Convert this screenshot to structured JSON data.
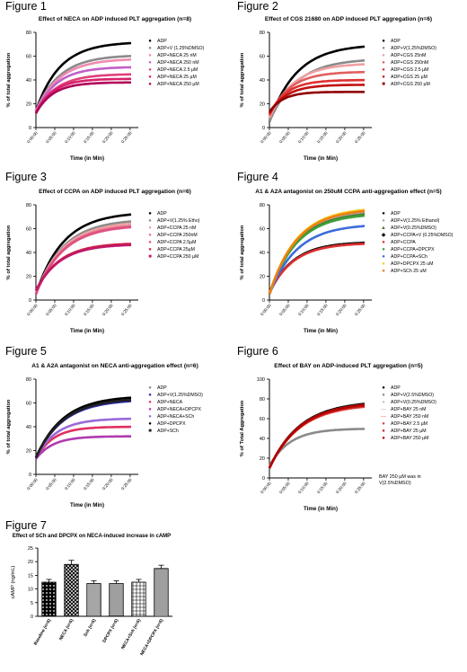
{
  "figure_labels": [
    "Figure 1",
    "Figure 2",
    "Figure 3",
    "Figure 4",
    "Figure 5",
    "Figure 6",
    "Figure 7"
  ],
  "chart_data": [
    {
      "type": "line",
      "title": "Effect of NECA on ADP induced PLT aggregation (n=8)",
      "xlabel": "Time (in Min)",
      "ylabel": "% of total aggregation",
      "ylim": [
        0,
        80
      ],
      "yticks": [
        0,
        20,
        40,
        60,
        80
      ],
      "xlim": [
        0,
        30
      ],
      "xticks": [
        "0:00:00",
        "0:05:00",
        "0:10:00",
        "0:15:00",
        "0:20:00",
        "0:25:00"
      ],
      "legend_position": "right",
      "series": [
        {
          "name": "ADP",
          "color": "#000000",
          "marker": "●",
          "y0": 14,
          "plateau": 72,
          "tau": 7
        },
        {
          "name": "ADP+V (1.25%DMSO)",
          "color": "#8a8a8a",
          "marker": "●",
          "y0": 14,
          "plateau": 61,
          "tau": 7
        },
        {
          "name": "ADP+NECA 25 nM",
          "color": "#f08ab0",
          "marker": "●",
          "y0": 14,
          "plateau": 58,
          "tau": 7
        },
        {
          "name": "ADP+NECA 250 nM",
          "color": "#c060c8",
          "marker": "●",
          "y0": 13,
          "plateau": 51,
          "tau": 6
        },
        {
          "name": "ADP+NECA 2.5 µM",
          "color": "#e0407a",
          "marker": "●",
          "y0": 13,
          "plateau": 45,
          "tau": 6
        },
        {
          "name": "ADP+NECA 25 µM",
          "color": "#d8206a",
          "marker": "●",
          "y0": 12,
          "plateau": 41,
          "tau": 5
        },
        {
          "name": "ADP+NECA 250 µM",
          "color": "#b0005a",
          "marker": "●",
          "y0": 12,
          "plateau": 38,
          "tau": 5
        }
      ]
    },
    {
      "type": "line",
      "title": "Effect of CGS 21680 on ADP induced PLT aggregation (n=6)",
      "xlabel": "Time (in Min)",
      "ylabel": "% of total aggregation",
      "ylim": [
        0,
        80
      ],
      "yticks": [
        0,
        20,
        40,
        60,
        80
      ],
      "xlim": [
        0,
        30
      ],
      "xticks": [
        "0:00:00",
        "0:05:00",
        "0:10:00",
        "0:15:00",
        "0:20:00",
        "0:25:00"
      ],
      "legend_position": "right",
      "series": [
        {
          "name": "ADP",
          "color": "#000000",
          "marker": "●",
          "y0": 5,
          "plateau": 70,
          "tau": 8
        },
        {
          "name": "ADP+V(1.25%DMSO)",
          "color": "#8a8a8a",
          "marker": "●",
          "y0": 5,
          "plateau": 58,
          "tau": 8
        },
        {
          "name": "ADP+CGS 25nM",
          "color": "#f0a0a0",
          "marker": "●",
          "y0": 8,
          "plateau": 54,
          "tau": 7
        },
        {
          "name": "ADP+CGS 250nM",
          "color": "#e06060",
          "marker": "●",
          "y0": 10,
          "plateau": 47,
          "tau": 6
        },
        {
          "name": "ADP+CGS 2.5 µM",
          "color": "#e03030",
          "marker": "●",
          "y0": 11,
          "plateau": 40,
          "tau": 5
        },
        {
          "name": "ADP+CGS 25 µM",
          "color": "#c01010",
          "marker": "●",
          "y0": 12,
          "plateau": 36,
          "tau": 5
        },
        {
          "name": "ADP+CGS 250 µM",
          "color": "#900000",
          "marker": "■",
          "y0": 13,
          "plateau": 30,
          "tau": 4
        }
      ]
    },
    {
      "type": "line",
      "title": "Effect of CCPA on ADP induced PLT aggregation (n=6)",
      "xlabel": "Time (in Min)",
      "ylabel": "% of total aggregation",
      "ylim": [
        0,
        80
      ],
      "yticks": [
        0,
        20,
        40,
        60,
        80
      ],
      "xlim": [
        0,
        30
      ],
      "xticks": [
        "0:00:00",
        "0:05:00",
        "0:10:00",
        "0:15:00",
        "0:20:00",
        "0:25:00"
      ],
      "legend_position": "right",
      "series": [
        {
          "name": "ADP",
          "color": "#000000",
          "marker": "●",
          "y0": 5,
          "plateau": 74,
          "tau": 8
        },
        {
          "name": "ADP+V(1.25% Etho)",
          "color": "#8a8a8a",
          "marker": "●",
          "y0": 5,
          "plateau": 68,
          "tau": 8
        },
        {
          "name": "ADP+CCPA 25 nM",
          "color": "#f0a0a0",
          "marker": "●",
          "y0": 5,
          "plateau": 66,
          "tau": 8
        },
        {
          "name": "ADP+CCPA 250nM",
          "color": "#e07090",
          "marker": "●",
          "y0": 5,
          "plateau": 64,
          "tau": 8
        },
        {
          "name": "ADP+CCPA 2.5µM",
          "color": "#e05080",
          "marker": "●",
          "y0": 5,
          "plateau": 63,
          "tau": 8
        },
        {
          "name": "ADP+CCPA 25µM",
          "color": "#d02040",
          "marker": "●",
          "y0": 8,
          "plateau": 48,
          "tau": 7
        },
        {
          "name": "ADP+CCPA 250 µM",
          "color": "#c0186a",
          "marker": "■",
          "y0": 8,
          "plateau": 47,
          "tau": 7
        }
      ]
    },
    {
      "type": "line",
      "title": "A1 & A2A antagonist on 250uM CCPA anti-aggregation effect (n=5)",
      "xlabel": "Time (in Min)",
      "ylabel": "% of total aggregation",
      "ylim": [
        0,
        80
      ],
      "yticks": [
        0,
        20,
        40,
        60,
        80
      ],
      "xlim": [
        0,
        30
      ],
      "xticks": [
        "0:00:00",
        "0:05:00",
        "0:10:00",
        "0:15:00",
        "0:20:00",
        "0:25:00"
      ],
      "legend_position": "right",
      "series": [
        {
          "name": "ADP",
          "color": "#000000",
          "marker": "●",
          "y0": 5,
          "plateau": 76,
          "tau": 8
        },
        {
          "name": "ADP+V(1.25% Ethanol)",
          "color": "#a8a8a8",
          "marker": "●",
          "y0": 5,
          "plateau": 75,
          "tau": 8
        },
        {
          "name": "ADP+V(0.25%DMSO)",
          "color": "#4a7a2a",
          "marker": "▲",
          "y0": 5,
          "plateau": 74,
          "tau": 8
        },
        {
          "name": "ADP+CCPA+V (0.25%DMSO)",
          "color": "#111111",
          "marker": "◆",
          "y0": 6,
          "plateau": 49,
          "tau": 7
        },
        {
          "name": "ADP+CCPA",
          "color": "#e03030",
          "marker": "●",
          "y0": 6,
          "plateau": 48,
          "tau": 7
        },
        {
          "name": "ADP+CCPA+DPCPX",
          "color": "#3ca03c",
          "marker": "●",
          "y0": 5,
          "plateau": 73,
          "tau": 8
        },
        {
          "name": "ADP+CCPA+SCh",
          "color": "#3c6cdc",
          "marker": "●",
          "y0": 5,
          "plateau": 64,
          "tau": 8
        },
        {
          "name": "ADP+DPCPX 25 uM",
          "color": "#f0d020",
          "marker": "●",
          "y0": 5,
          "plateau": 78,
          "tau": 8
        },
        {
          "name": "ADP+SCh 25 uM",
          "color": "#f08010",
          "marker": "●",
          "y0": 5,
          "plateau": 77,
          "tau": 8
        }
      ]
    },
    {
      "type": "line",
      "title": "A1 & A2A antagonist on NECA anti-aggregation effect (n=6)",
      "xlabel": "Time (in Min)",
      "ylabel": "% of total aggregation",
      "ylim": [
        0,
        80
      ],
      "yticks": [
        0,
        20,
        40,
        60,
        80
      ],
      "xlim": [
        0,
        30
      ],
      "xticks": [
        "0:00:00",
        "0:05:00",
        "0:10:00",
        "0:15:00",
        "0:20:00",
        "0:25:00"
      ],
      "legend_position": "right",
      "series": [
        {
          "name": "ADP",
          "color": "#8a8a8a",
          "marker": "●",
          "y0": 14,
          "plateau": 66,
          "tau": 8
        },
        {
          "name": "ADP+V(1.25%DMSO)",
          "color": "#2a2ab0",
          "marker": "●",
          "y0": 14,
          "plateau": 63,
          "tau": 8
        },
        {
          "name": "ADP+NECA",
          "color": "#e03060",
          "marker": "●",
          "y0": 13,
          "plateau": 40,
          "tau": 5
        },
        {
          "name": "ADP+NECA+DPCPX",
          "color": "#b03ab0",
          "marker": "●",
          "y0": 13,
          "plateau": 32,
          "tau": 5
        },
        {
          "name": "ADP+NECA+SCh",
          "color": "#9a6ad8",
          "marker": "●",
          "y0": 14,
          "plateau": 47,
          "tau": 6
        },
        {
          "name": "ADP+DPCPX",
          "color": "#000000",
          "marker": "●",
          "y0": 14,
          "plateau": 66,
          "tau": 8
        },
        {
          "name": "ADP+SCh",
          "color": "#202020",
          "marker": "■",
          "y0": 14,
          "plateau": 64,
          "tau": 8
        }
      ]
    },
    {
      "type": "line",
      "title": "Effect of BAY on ADP-induced PLT aggregation (n=5)",
      "xlabel": "Time (in Min)",
      "ylabel": "% of Total Aggregation",
      "ylim": [
        0,
        100
      ],
      "yticks": [
        0,
        20,
        40,
        60,
        80,
        100
      ],
      "xlim": [
        0,
        30
      ],
      "xticks": [
        "0:00:00",
        "0:05:00",
        "0:10:00",
        "0:15:00",
        "0:20:00",
        "0:25:00"
      ],
      "legend_position": "right",
      "note": "BAY 250 µM was in V(2.5%DMSO)",
      "series": [
        {
          "name": "ADP",
          "color": "#000000",
          "marker": "●",
          "y0": 10,
          "plateau": 78,
          "tau": 9
        },
        {
          "name": "ADP+V(2.5%DMSO)",
          "color": "#8a8a8a",
          "marker": "●",
          "y0": 12,
          "plateau": 50,
          "tau": 6
        },
        {
          "name": "ADP+V(0.25%DMSO)",
          "color": "#c8c8c8",
          "marker": "●",
          "y0": 10,
          "plateau": 77,
          "tau": 9
        },
        {
          "name": "ADP+BAY 25 nM",
          "color": "#f0a0a0",
          "marker": "—",
          "y0": 10,
          "plateau": 76,
          "tau": 9
        },
        {
          "name": "ADP+BAY 250 nM",
          "color": "#e87070",
          "marker": "—",
          "y0": 10,
          "plateau": 76,
          "tau": 9
        },
        {
          "name": "ADP+BAY 2.5 µM",
          "color": "#e04040",
          "marker": "●",
          "y0": 10,
          "plateau": 75,
          "tau": 9
        },
        {
          "name": "ADP+BAY 25 µM",
          "color": "#d02020",
          "marker": "●",
          "y0": 10,
          "plateau": 76,
          "tau": 9
        },
        {
          "name": "ADP+BAY 250 µM",
          "color": "#b00000",
          "marker": "●",
          "y0": 10,
          "plateau": 77,
          "tau": 9
        }
      ]
    },
    {
      "type": "bar",
      "title": "Effect of SCh and DPCPX on NECA-induced increase in cAMP",
      "ylabel": "cAMP (ng/mL)",
      "ylim": [
        0,
        25
      ],
      "yticks": [
        0,
        5,
        10,
        15,
        20,
        25
      ],
      "categories": [
        "Baseline (n=5)",
        "NECA (n=5)",
        "Sch (n=5)",
        "DPCPX (n=5)",
        "NECA+Sch (n=5)",
        "NECA+DPCPX (n=5)"
      ],
      "values": [
        12.5,
        19,
        12,
        12,
        12.5,
        17.5
      ],
      "errors": [
        1,
        1.5,
        1,
        1,
        1,
        1.2
      ]
    }
  ]
}
